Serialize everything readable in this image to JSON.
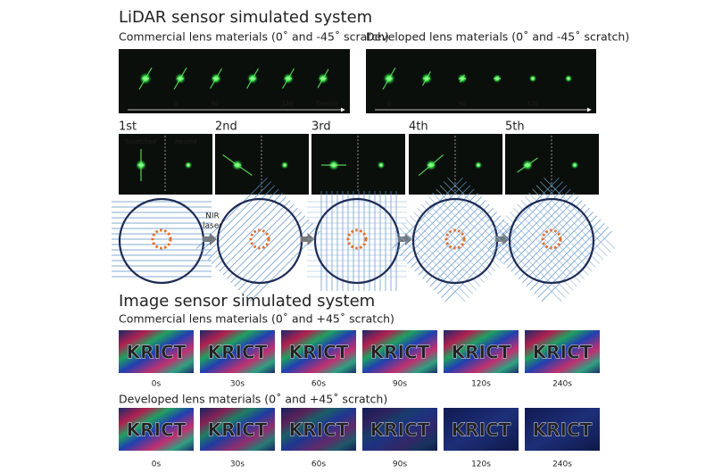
{
  "lidar": {
    "title": "LiDAR sensor simulated system",
    "commercial": {
      "label": "Commercial lens materials (0˚ and -45˚ scratch)",
      "ticks": [
        "0",
        "60",
        "120"
      ],
      "axis_label": "Time(s)"
    },
    "developed": {
      "label": "Developed lens materials (0˚ and -45˚ scratch)",
      "ticks": [
        "0",
        "60",
        "120"
      ]
    },
    "steps": [
      "1st",
      "2nd",
      "3rd",
      "4th",
      "5th"
    ],
    "scratched": "Scratched",
    "healed": "Healed",
    "laser_label": [
      "NIR",
      "laser"
    ]
  },
  "image": {
    "title": "Image sensor simulated system",
    "rows": [
      {
        "label": "Commercial lens materials (0˚ and +45˚ scratch)",
        "image_text": "KRICT",
        "times": [
          "0s",
          "30s",
          "60s",
          "90s",
          "120s",
          "240s"
        ]
      },
      {
        "label": "Developed lens materials (0˚ and +45˚ scratch)",
        "image_text": "KRICT",
        "times": [
          "0s",
          "30s",
          "60s",
          "90s",
          "120s",
          "240s"
        ]
      }
    ]
  }
}
